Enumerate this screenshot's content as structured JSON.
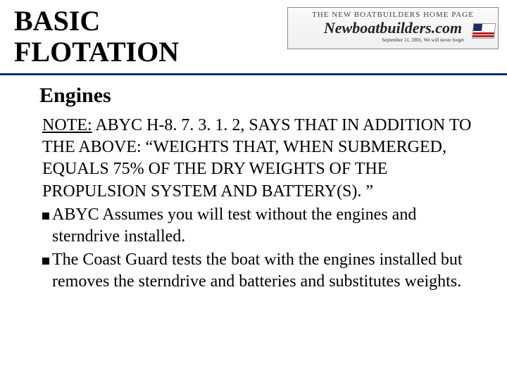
{
  "header": {
    "title_line1": "BASIC",
    "title_line2": "FLOTATION",
    "logo": {
      "top": "THE NEW BOATBUILDERS HOME PAGE",
      "main": "Newboatbuilders.com",
      "sub": "September 11, 2001, We will never forget"
    }
  },
  "subheading": "Engines",
  "note_label": "NOTE:",
  "note_body": " ABYC H-8. 7. 3. 1. 2, SAYS THAT IN ADDITION TO THE ABOVE: “WEIGHTS THAT, WHEN SUBMERGED, EQUALS 75% OF THE DRY WEIGHTS OF THE PROPULSION SYSTEM AND BATTERY(S). ”",
  "bullets": [
    "ABYC Assumes you will test without the engines and sterndrive installed.",
    "The Coast Guard tests the boat with the engines installed but removes the sterndrive and batteries and substitutes weights."
  ],
  "colors": {
    "divider": "#0a2d7a",
    "text": "#000000",
    "background": "#ffffff"
  }
}
